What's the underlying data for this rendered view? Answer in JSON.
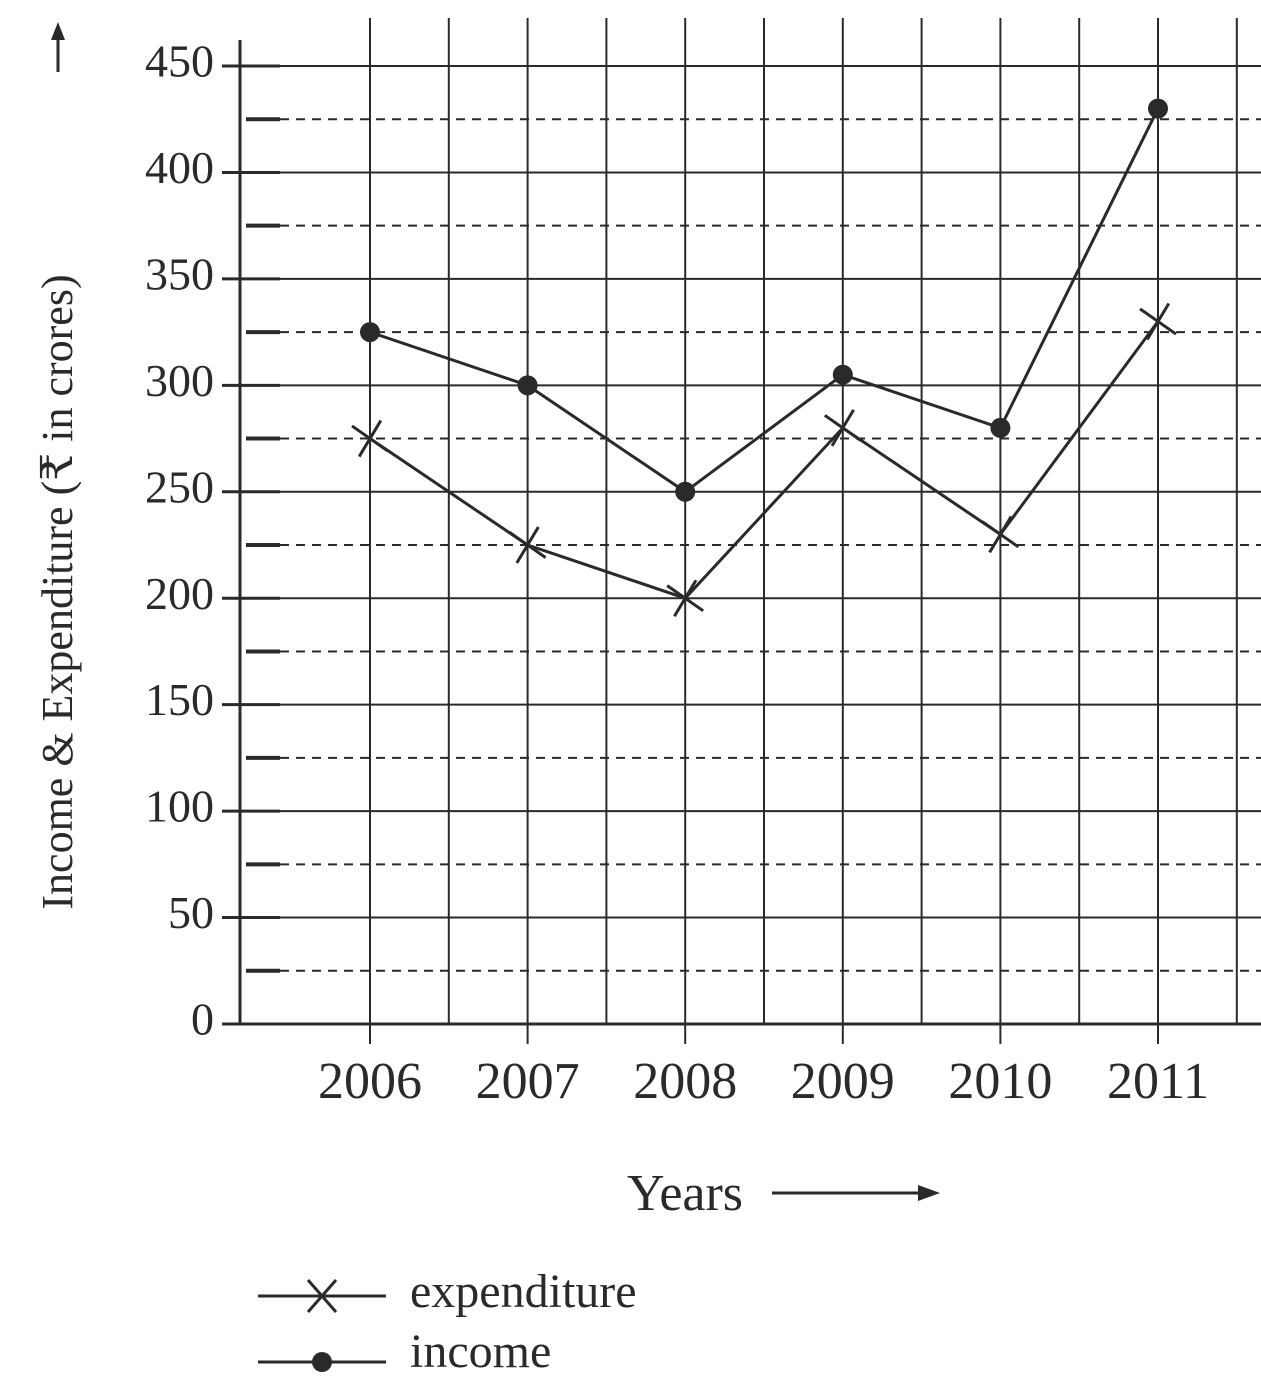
{
  "chart_data": {
    "type": "line",
    "categories": [
      "2006",
      "2007",
      "2008",
      "2009",
      "2010",
      "2011"
    ],
    "series": [
      {
        "name": "expenditure",
        "marker": "cross",
        "values": [
          275,
          225,
          200,
          280,
          230,
          330
        ]
      },
      {
        "name": "income",
        "marker": "dot",
        "values": [
          325,
          300,
          250,
          305,
          280,
          430
        ]
      }
    ],
    "xlabel": "Years",
    "ylabel": "Income & Expenditure (₹ in crores)",
    "ylim": [
      0,
      450
    ],
    "yticks": [
      "0",
      "50",
      "100",
      "150",
      "200",
      "250",
      "300",
      "350",
      "400",
      "450"
    ],
    "grid": true,
    "legend_position": "bottom-left",
    "line_color": "#2a2a2a"
  }
}
